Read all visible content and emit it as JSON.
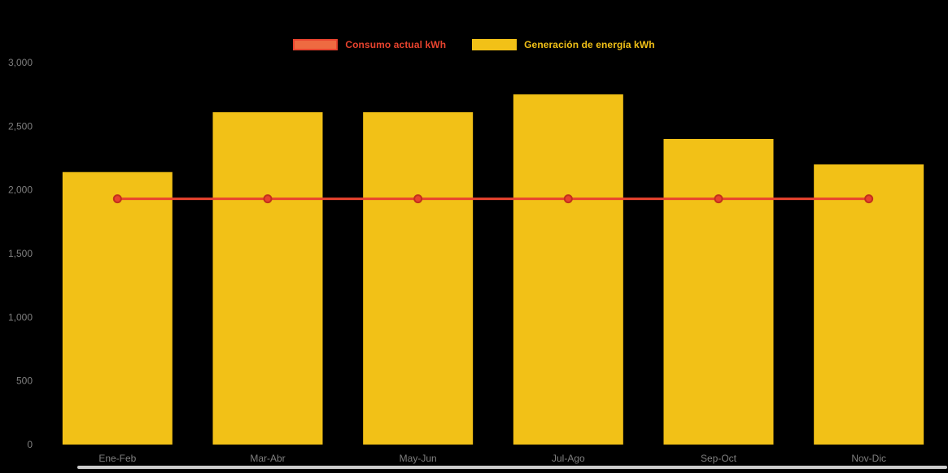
{
  "background_color": "#000000",
  "axis_text_color": "#7f7f7f",
  "legend": {
    "items": [
      {
        "label": "Consumo actual kWh",
        "swatch_fill": "#ee6a41",
        "swatch_border": "#e8432e",
        "text_color": "#e8432e"
      },
      {
        "label": "Generación de energía kWh",
        "swatch_fill": "#f2c117",
        "swatch_border": "#f2c117",
        "text_color": "#f2c117"
      }
    ]
  },
  "chart_data": {
    "type": "bar",
    "title": "",
    "xlabel": "",
    "ylabel": "",
    "categories": [
      "Ene-Feb",
      "Mar-Abr",
      "May-Jun",
      "Jul-Ago",
      "Sep-Oct",
      "Nov-Dic"
    ],
    "series": [
      {
        "name": "Consumo actual kWh",
        "type": "line",
        "color": "#e8432e",
        "marker_border_color": "#c2301c",
        "values": [
          1930,
          1930,
          1930,
          1930,
          1930,
          1930
        ]
      },
      {
        "name": "Generación de energía kWh",
        "type": "bar",
        "color": "#f2c117",
        "values": [
          2140,
          2610,
          2610,
          2750,
          2400,
          2200
        ]
      }
    ],
    "ylim": [
      0,
      3000
    ],
    "y_ticks": [
      0,
      500,
      1000,
      1500,
      2000,
      2500,
      3000
    ],
    "y_tick_labels": [
      "0",
      "500",
      "1,000",
      "1,500",
      "2,000",
      "2,500",
      "3,000"
    ],
    "legend_position": "top",
    "grid": false
  }
}
